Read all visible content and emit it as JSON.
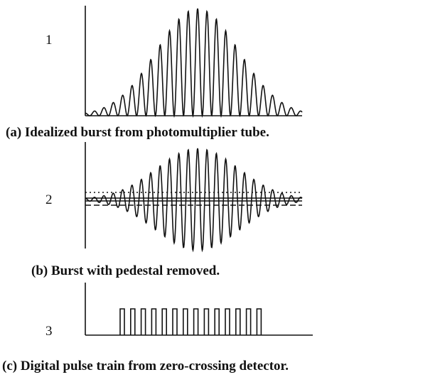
{
  "panels": [
    {
      "label": "1",
      "caption": "(a)  Idealized burst from photomultiplier tube."
    },
    {
      "label": "2",
      "caption": "(b)  Burst with pedestal removed."
    },
    {
      "label": "3",
      "caption": "(c) Digital pulse train from zero-crossing detector."
    }
  ]
}
